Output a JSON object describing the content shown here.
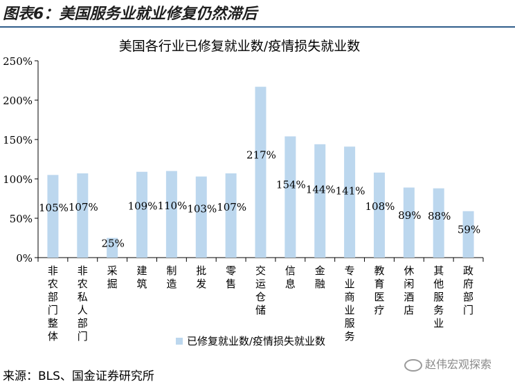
{
  "figure_title": "图表6：美国服务业就业修复仍然滞后",
  "source": "来源：BLS、国金证券研究所",
  "watermark": "赵伟宏观探索",
  "chart_data": {
    "type": "bar",
    "title": "美国各行业已修复就业数/疫情损失就业数",
    "categories": [
      "非农部门整体",
      "非农私人部门",
      "采掘",
      "建筑",
      "制造",
      "批发",
      "零售",
      "交运仓储",
      "信息",
      "金融",
      "专业商业服务",
      "教育医疗",
      "休闲酒店",
      "其他服务业",
      "政府部门"
    ],
    "series": [
      {
        "name": "已修复就业数/疫情损失就业数",
        "values": [
          105,
          107,
          25,
          109,
          110,
          103,
          107,
          217,
          154,
          144,
          141,
          108,
          89,
          88,
          59
        ]
      }
    ],
    "data_labels": [
      "105%",
      "107%",
      "25%",
      "109%",
      "110%",
      "103%",
      "107%",
      "217%",
      "154%",
      "144%",
      "141%",
      "108%",
      "89%",
      "88%",
      "59%"
    ],
    "ylim": [
      0,
      250
    ],
    "yticks": [
      "0%",
      "50%",
      "100%",
      "150%",
      "200%",
      "250%"
    ],
    "grid": false,
    "legend": "bottom",
    "bar_color": "#bcd7ee"
  }
}
